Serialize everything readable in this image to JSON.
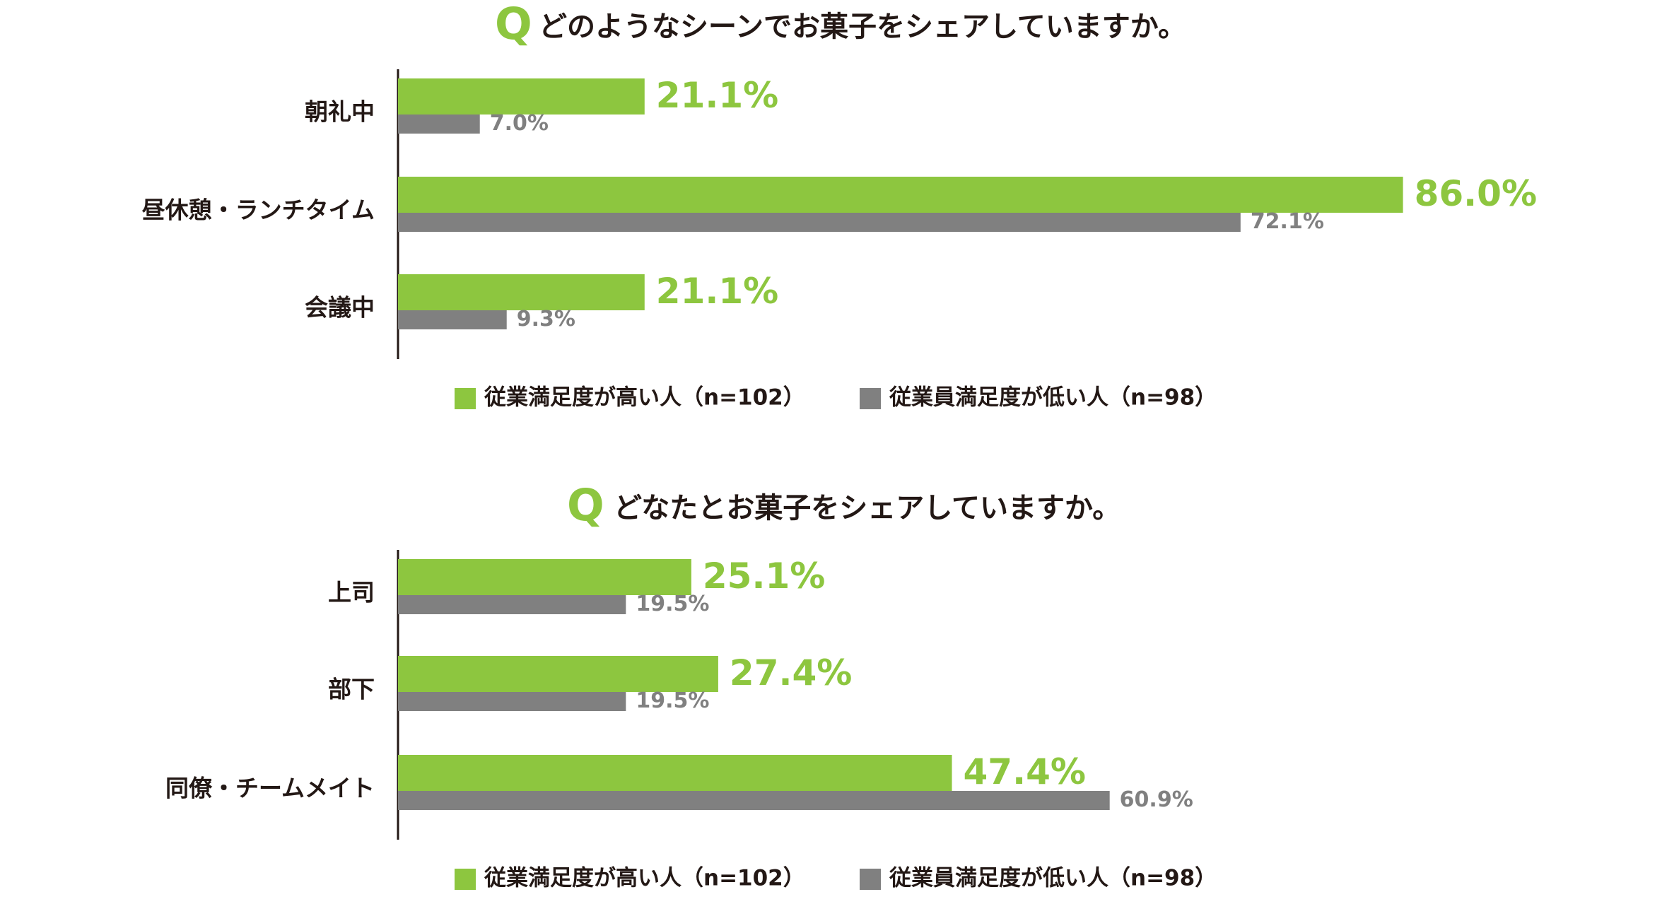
{
  "chart_data": [
    {
      "type": "bar",
      "orientation": "horizontal",
      "question_mark": "Q",
      "title": "どのようなシーンでお菓子をシェアしていますか。",
      "categories": [
        "朝礼中",
        "昼休憩・ランチタイム",
        "会議中"
      ],
      "series": [
        {
          "name": "従業満足度が高い人（n=102）",
          "color": "#8dc63f",
          "values": [
            21.1,
            86.0,
            21.1
          ],
          "value_labels": [
            "21.1%",
            "86.0%",
            "21.1%"
          ]
        },
        {
          "name": "従業員満足度が低い人（n=98）",
          "color": "#808080",
          "values": [
            7.0,
            72.1,
            9.3
          ],
          "value_labels": [
            "7.0%",
            "72.1%",
            "9.3%"
          ]
        }
      ],
      "xlim": [
        0,
        100
      ]
    },
    {
      "type": "bar",
      "orientation": "horizontal",
      "question_mark": "Q",
      "title": "どなたとお菓子をシェアしていますか。",
      "categories": [
        "上司",
        "部下",
        "同僚・チームメイト"
      ],
      "series": [
        {
          "name": "従業満足度が高い人（n=102）",
          "color": "#8dc63f",
          "values": [
            25.1,
            27.4,
            47.4
          ],
          "value_labels": [
            "25.1%",
            "27.4%",
            "47.4%"
          ]
        },
        {
          "name": "従業員満足度が低い人（n=98）",
          "color": "#808080",
          "values": [
            19.5,
            19.5,
            60.9
          ],
          "value_labels": [
            "19.5%",
            "19.5%",
            "60.9%"
          ]
        }
      ],
      "xlim": [
        0,
        100
      ]
    }
  ]
}
